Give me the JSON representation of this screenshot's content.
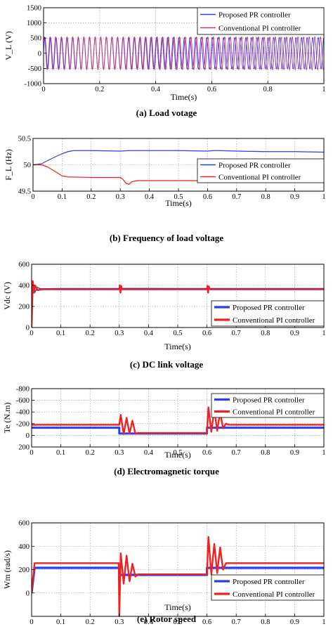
{
  "colors": {
    "proposed": "#2b3ef0",
    "conventional": "#ee2222",
    "conv_a": "#cc3377"
  },
  "chart_data": [
    {
      "type": "line",
      "caption": "(a) Load votage",
      "xlabel": "Time(s)",
      "ylabel": "V_L (V)",
      "xlim": [
        0,
        1
      ],
      "ylim": [
        -1000,
        1500
      ],
      "xticks": [
        0,
        0.2,
        0.4,
        0.6,
        0.8,
        1
      ],
      "xtick_labels": [
        "0",
        "0.2",
        "0.4",
        "0.6",
        "0.8",
        "1"
      ],
      "yticks": [
        -1000,
        -500,
        0,
        500,
        1000,
        1500
      ],
      "ytick_labels": [
        "-1000",
        "-500",
        "0",
        "500",
        "1000",
        "1500"
      ],
      "grid": true,
      "legend_position": "top-right",
      "series": [
        {
          "name": "Proposed PR controller",
          "color_key": "proposed",
          "kind": "sine",
          "amplitude": 520,
          "frequency_hz": 50.25
        },
        {
          "name": "Conventional PI controller",
          "color_key": "conv_a",
          "kind": "sine",
          "amplitude": 540,
          "frequency_hz": 49.75
        }
      ]
    },
    {
      "type": "line",
      "caption": "(b) Frequency of load voltage",
      "xlabel": "Time(s)",
      "ylabel": "F_L (Hz)",
      "xlim": [
        0,
        1
      ],
      "ylim": [
        49.5,
        50.5
      ],
      "xticks": [
        0,
        0.1,
        0.2,
        0.3,
        0.4,
        0.5,
        0.6,
        0.7,
        0.8,
        0.9,
        1
      ],
      "xtick_labels": [
        "0",
        "0.1",
        "0.2",
        "0.3",
        "0.4",
        "0.5",
        "0.6",
        "0.7",
        "0.8",
        "0.9",
        "1"
      ],
      "yticks": [
        49.5,
        50,
        50.5
      ],
      "ytick_labels": [
        "49.5",
        "50",
        "50.5"
      ],
      "grid": true,
      "legend_position": "right",
      "series": [
        {
          "name": "Proposed PR controller",
          "color_key": "proposed",
          "x": [
            0,
            0.03,
            0.05,
            0.08,
            0.1,
            0.12,
            0.14,
            0.2,
            0.3,
            0.33,
            0.4,
            0.5,
            0.6,
            0.62,
            0.64,
            0.7,
            0.8,
            0.9,
            1
          ],
          "y": [
            50,
            50.02,
            50.08,
            50.16,
            50.21,
            50.25,
            50.27,
            50.27,
            50.26,
            50.27,
            50.27,
            50.27,
            50.26,
            50.27,
            50.27,
            50.26,
            50.25,
            50.25,
            50.24
          ]
        },
        {
          "name": "Conventional PI controller",
          "color_key": "conventional",
          "x": [
            0,
            0.03,
            0.05,
            0.08,
            0.1,
            0.12,
            0.2,
            0.3,
            0.31,
            0.32,
            0.33,
            0.34,
            0.36,
            0.4,
            0.5,
            0.6,
            0.62,
            0.63,
            0.64,
            0.65,
            0.66,
            0.7,
            0.8,
            0.9,
            1
          ],
          "y": [
            50,
            50,
            49.96,
            49.86,
            49.79,
            49.77,
            49.76,
            49.76,
            49.72,
            49.65,
            49.63,
            49.68,
            49.7,
            49.7,
            49.7,
            49.7,
            49.78,
            49.88,
            49.88,
            49.8,
            49.77,
            49.76,
            49.75,
            49.75,
            49.75
          ]
        }
      ]
    },
    {
      "type": "line",
      "caption": "(c) DC link voltage",
      "xlabel": "Time(s)",
      "ylabel": "Vdc (V)",
      "xlim": [
        0,
        1
      ],
      "ylim": [
        0,
        600
      ],
      "xticks": [
        0,
        0.1,
        0.2,
        0.3,
        0.4,
        0.5,
        0.6,
        0.7,
        0.8,
        0.9,
        1
      ],
      "xtick_labels": [
        "0",
        "0.1",
        "0.2",
        "0.3",
        "0.4",
        "0.5",
        "0.6",
        "0.7",
        "0.8",
        "0.9",
        "1"
      ],
      "yticks": [
        0,
        200,
        400,
        600
      ],
      "ytick_labels": [
        "0",
        "200",
        "400",
        "600"
      ],
      "grid": true,
      "legend_position": "bottom-right",
      "series": [
        {
          "name": "Proposed PR controller",
          "color_key": "proposed",
          "x": [
            0,
            0.005,
            0.01,
            0.02,
            0.03,
            0.1,
            0.3,
            0.305,
            0.31,
            0.6,
            0.605,
            0.61,
            1
          ],
          "y": [
            0,
            420,
            330,
            380,
            368,
            370,
            370,
            390,
            372,
            370,
            385,
            370,
            370
          ]
        },
        {
          "name": "Conventional PI controller",
          "color_key": "conventional",
          "x": [
            0,
            0.004,
            0.008,
            0.012,
            0.02,
            0.04,
            0.1,
            0.3,
            0.302,
            0.304,
            0.306,
            0.31,
            0.6,
            0.602,
            0.604,
            0.606,
            0.61,
            1
          ],
          "y": [
            0,
            440,
            330,
            400,
            355,
            362,
            362,
            362,
            400,
            330,
            395,
            362,
            362,
            395,
            330,
            390,
            362,
            362
          ]
        }
      ]
    },
    {
      "type": "line",
      "caption": "(d) Electromagnetic torque",
      "xlabel": "Time(s)",
      "ylabel": "Te (N.m)",
      "xlim": [
        0,
        1
      ],
      "ylim": [
        -800,
        200
      ],
      "y_reversed": true,
      "xticks": [
        0,
        0.1,
        0.2,
        0.3,
        0.4,
        0.5,
        0.6,
        0.7,
        0.8,
        0.9,
        1
      ],
      "xtick_labels": [
        "0",
        "0.1",
        "0.2",
        "0.3",
        "0.4",
        "0.5",
        "0.6",
        "0.7",
        "0.8",
        "0.9",
        "1"
      ],
      "yticks": [
        -800,
        -600,
        -400,
        -200,
        0,
        200
      ],
      "ytick_labels": [
        "-800",
        "-600",
        "-400",
        "-200",
        "0",
        "200"
      ],
      "grid": true,
      "legend_position": "top-right",
      "series": [
        {
          "name": "Proposed PR controller",
          "color_key": "proposed",
          "x": [
            0,
            0.01,
            0.3,
            0.3,
            0.6,
            0.6,
            1
          ],
          "y": [
            -130,
            -130,
            -130,
            -30,
            -30,
            -130,
            -130
          ]
        },
        {
          "name": "Conventional PI controller",
          "color_key": "conventional",
          "x": [
            0,
            0.01,
            0.3,
            0.305,
            0.315,
            0.325,
            0.335,
            0.345,
            0.355,
            0.365,
            0.375,
            0.6,
            0.605,
            0.615,
            0.625,
            0.635,
            0.645,
            0.655,
            0.665,
            0.675,
            1
          ],
          "y": [
            -180,
            -180,
            -180,
            -350,
            -20,
            -300,
            -30,
            -250,
            -30,
            -40,
            -40,
            -40,
            -480,
            -60,
            -450,
            -80,
            -400,
            -120,
            -200,
            -180,
            -180
          ]
        }
      ]
    },
    {
      "type": "line",
      "caption": "(e) Rotor speed",
      "xlabel": "Time(s)",
      "ylabel": "Wm (rad/s)",
      "xlim": [
        0,
        1
      ],
      "ylim": [
        -200,
        600
      ],
      "xticks": [
        0,
        0.1,
        0.2,
        0.3,
        0.4,
        0.5,
        0.6,
        0.7,
        0.8,
        0.9,
        1
      ],
      "xtick_labels": [
        "0",
        "0.1",
        "0.2",
        "0.3",
        "0.4",
        "0.5",
        "0.6",
        "0.7",
        "0.8",
        "0.9",
        "1"
      ],
      "yticks": [
        0,
        200,
        400,
        600
      ],
      "ytick_labels": [
        "0",
        "200",
        "400",
        "600"
      ],
      "grid": true,
      "legend_position": "bottom-right",
      "series": [
        {
          "name": "Proposed PR controller",
          "color_key": "proposed",
          "x": [
            0,
            0.01,
            0.3,
            0.3,
            0.6,
            0.6,
            1
          ],
          "y": [
            0,
            215,
            215,
            155,
            155,
            215,
            215
          ]
        },
        {
          "name": "Conventional PI controller",
          "color_key": "conventional",
          "x": [
            0,
            0.01,
            0.298,
            0.3,
            0.305,
            0.315,
            0.325,
            0.335,
            0.345,
            0.355,
            0.365,
            0.375,
            0.6,
            0.605,
            0.615,
            0.625,
            0.635,
            0.645,
            0.655,
            0.665,
            1
          ],
          "y": [
            0,
            255,
            255,
            -200,
            340,
            80,
            320,
            100,
            250,
            140,
            160,
            160,
            160,
            480,
            160,
            420,
            170,
            390,
            200,
            255,
            255
          ]
        }
      ]
    }
  ]
}
